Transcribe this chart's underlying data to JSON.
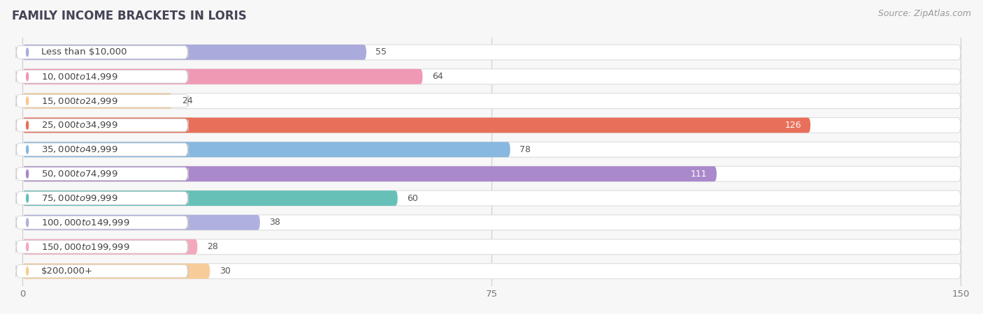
{
  "title": "FAMILY INCOME BRACKETS IN LORIS",
  "source": "Source: ZipAtlas.com",
  "categories": [
    "Less than $10,000",
    "$10,000 to $14,999",
    "$15,000 to $24,999",
    "$25,000 to $34,999",
    "$35,000 to $49,999",
    "$50,000 to $74,999",
    "$75,000 to $99,999",
    "$100,000 to $149,999",
    "$150,000 to $199,999",
    "$200,000+"
  ],
  "values": [
    55,
    64,
    24,
    126,
    78,
    111,
    60,
    38,
    28,
    30
  ],
  "bar_colors": [
    "#aaaadd",
    "#f099b5",
    "#f8c890",
    "#e8705a",
    "#88b8e0",
    "#aa88cc",
    "#66c0b8",
    "#b0b0e0",
    "#f4a8bc",
    "#f8cc98"
  ],
  "xlim": [
    0,
    150
  ],
  "xticks": [
    0,
    75,
    150
  ],
  "bar_height": 0.62,
  "background_color": "#f7f7f7",
  "bar_bg_color": "#ffffff",
  "title_fontsize": 12,
  "label_fontsize": 9.5,
  "value_fontsize": 9,
  "source_fontsize": 9
}
